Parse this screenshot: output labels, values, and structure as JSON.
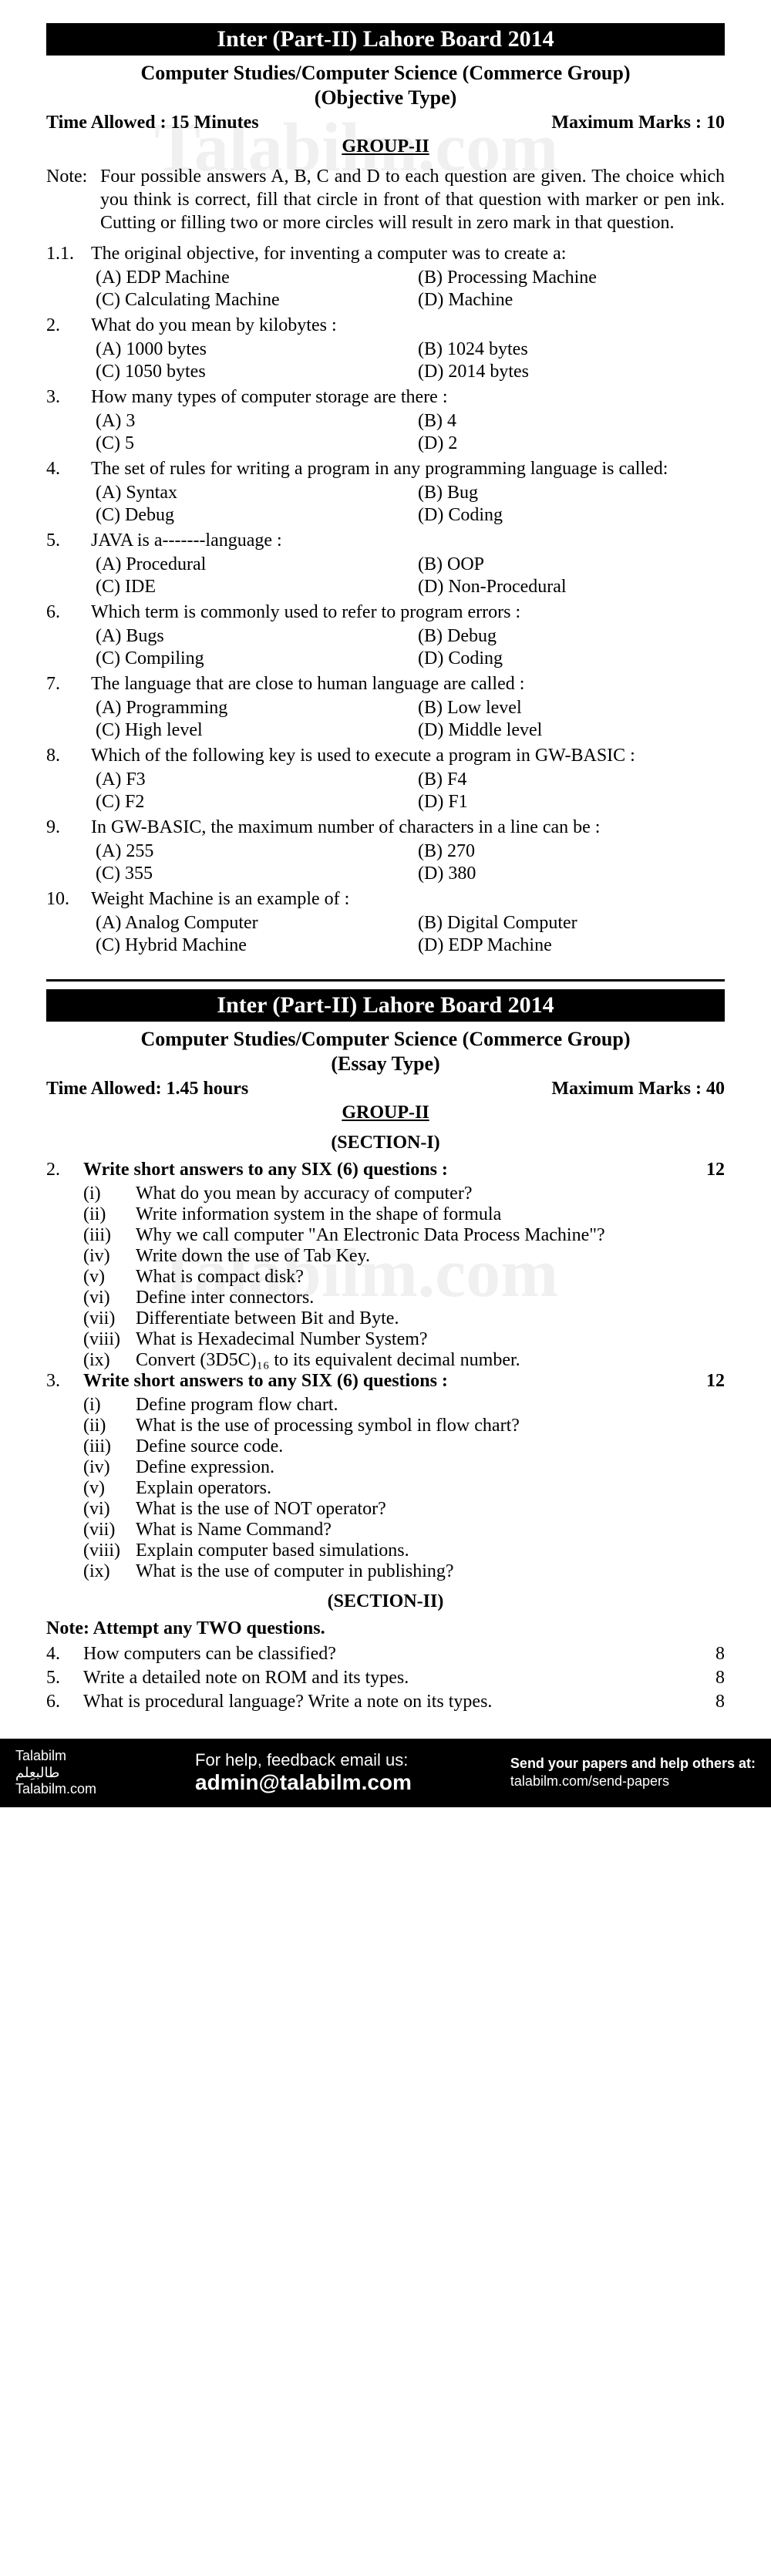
{
  "banner": "Inter (Part-II) Lahore Board 2014",
  "subject": "Computer Studies/Computer Science (Commerce Group)",
  "obj": {
    "type": "(Objective Type)",
    "time": "Time Allowed : 15 Minutes",
    "marks": "Maximum Marks : 10",
    "group": "GROUP-II",
    "note_label": "Note:",
    "note": "Four possible answers A, B, C and D to each question are given. The choice which you think is correct, fill that circle in front of that question with marker or pen ink. Cutting or filling two or more circles will result in zero mark in that question.",
    "questions": [
      {
        "n": "1.1.",
        "q": "The original objective, for inventing a computer was to create a:",
        "opts": [
          "(A) EDP Machine",
          "(B) Processing Machine",
          "(C) Calculating Machine",
          "(D) Machine"
        ]
      },
      {
        "n": "2.",
        "q": "What do you mean by kilobytes :",
        "opts": [
          "(A) 1000 bytes",
          "(B) 1024 bytes",
          "(C) 1050 bytes",
          "(D) 2014 bytes"
        ]
      },
      {
        "n": "3.",
        "q": "How many types of computer storage are there :",
        "opts": [
          "(A) 3",
          "(B) 4",
          "(C) 5",
          "(D) 2"
        ]
      },
      {
        "n": "4.",
        "q": "The set of rules for writing a program in any programming language is called:",
        "opts": [
          "(A) Syntax",
          "(B) Bug",
          "(C) Debug",
          "(D) Coding"
        ]
      },
      {
        "n": "5.",
        "q": "JAVA is a-------language :",
        "opts": [
          "(A) Procedural",
          "(B) OOP",
          "(C) IDE",
          "(D) Non-Procedural"
        ]
      },
      {
        "n": "6.",
        "q": "Which term is commonly used to refer to program errors :",
        "opts": [
          "(A) Bugs",
          "(B) Debug",
          "(C) Compiling",
          "(D) Coding"
        ]
      },
      {
        "n": "7.",
        "q": "The language that are close to human language are called :",
        "opts": [
          "(A) Programming",
          "(B) Low level",
          "(C) High level",
          "(D) Middle level"
        ]
      },
      {
        "n": "8.",
        "q": "Which of the following key is used to execute a program in GW-BASIC :",
        "opts": [
          "(A) F3",
          "(B) F4",
          "(C) F2",
          "(D) F1"
        ]
      },
      {
        "n": "9.",
        "q": "In GW-BASIC, the maximum number of characters in a line can be :",
        "opts": [
          "(A) 255",
          "(B) 270",
          "(C) 355",
          "(D) 380"
        ]
      },
      {
        "n": "10.",
        "q": "Weight Machine is an example of :",
        "opts": [
          "(A) Analog Computer",
          "(B) Digital Computer",
          "(C) Hybrid Machine",
          "(D) EDP Machine"
        ]
      }
    ]
  },
  "essay": {
    "type": "(Essay Type)",
    "time": "Time Allowed: 1.45 hours",
    "marks": "Maximum Marks : 40",
    "group": "GROUP-II",
    "section1": "(SECTION-I)",
    "q2": {
      "n": "2.",
      "text": "Write short answers to any SIX (6) questions :",
      "marks": "12",
      "subs": [
        {
          "n": "(i)",
          "t": "What do you mean by accuracy of computer?"
        },
        {
          "n": "(ii)",
          "t": "Write information system in the shape of formula"
        },
        {
          "n": "(iii)",
          "t": "Why we call computer \"An Electronic Data Process Machine\"?"
        },
        {
          "n": "(iv)",
          "t": "Write down the use of Tab Key."
        },
        {
          "n": "(v)",
          "t": "What is compact disk?"
        },
        {
          "n": "(vi)",
          "t": "Define inter connectors."
        },
        {
          "n": "(vii)",
          "t": "Differentiate between Bit and Byte."
        },
        {
          "n": "(viii)",
          "t": "What is Hexadecimal Number System?"
        },
        {
          "n": "(ix)",
          "t": "Convert (3D5C)₁₆ to its equivalent decimal number."
        }
      ]
    },
    "q3": {
      "n": "3.",
      "text": "Write short answers to any SIX (6) questions :",
      "marks": "12",
      "subs": [
        {
          "n": "(i)",
          "t": "Define program flow chart."
        },
        {
          "n": "(ii)",
          "t": "What is the use of processing symbol in flow chart?"
        },
        {
          "n": "(iii)",
          "t": "Define source code."
        },
        {
          "n": "(iv)",
          "t": "Define expression."
        },
        {
          "n": "(v)",
          "t": "Explain operators."
        },
        {
          "n": "(vi)",
          "t": "What is the use of NOT operator?"
        },
        {
          "n": "(vii)",
          "t": "What is Name Command?"
        },
        {
          "n": "(viii)",
          "t": "Explain computer based simulations."
        },
        {
          "n": "(ix)",
          "t": "What is the use of computer in publishing?"
        }
      ]
    },
    "section2": "(SECTION-II)",
    "note2": "Note: Attempt any TWO questions.",
    "long": [
      {
        "n": "4.",
        "t": "How computers can be classified?",
        "m": "8"
      },
      {
        "n": "5.",
        "t": "Write a detailed note on ROM and its types.",
        "m": "8"
      },
      {
        "n": "6.",
        "t": "What is procedural language? Write a note on its types.",
        "m": "8"
      }
    ]
  },
  "watermarks": [
    "Talabilm.com",
    "Talabilm.com"
  ],
  "footer": {
    "brand1": "Talabilm",
    "brand2": "طالبعِلم",
    "brand3": "Talabilm.com",
    "help1": "For help, feedback email us:",
    "help2": "admin@talabilm.com",
    "send1": "Send your papers and help others at:",
    "send2": "talabilm.com/send-papers"
  }
}
